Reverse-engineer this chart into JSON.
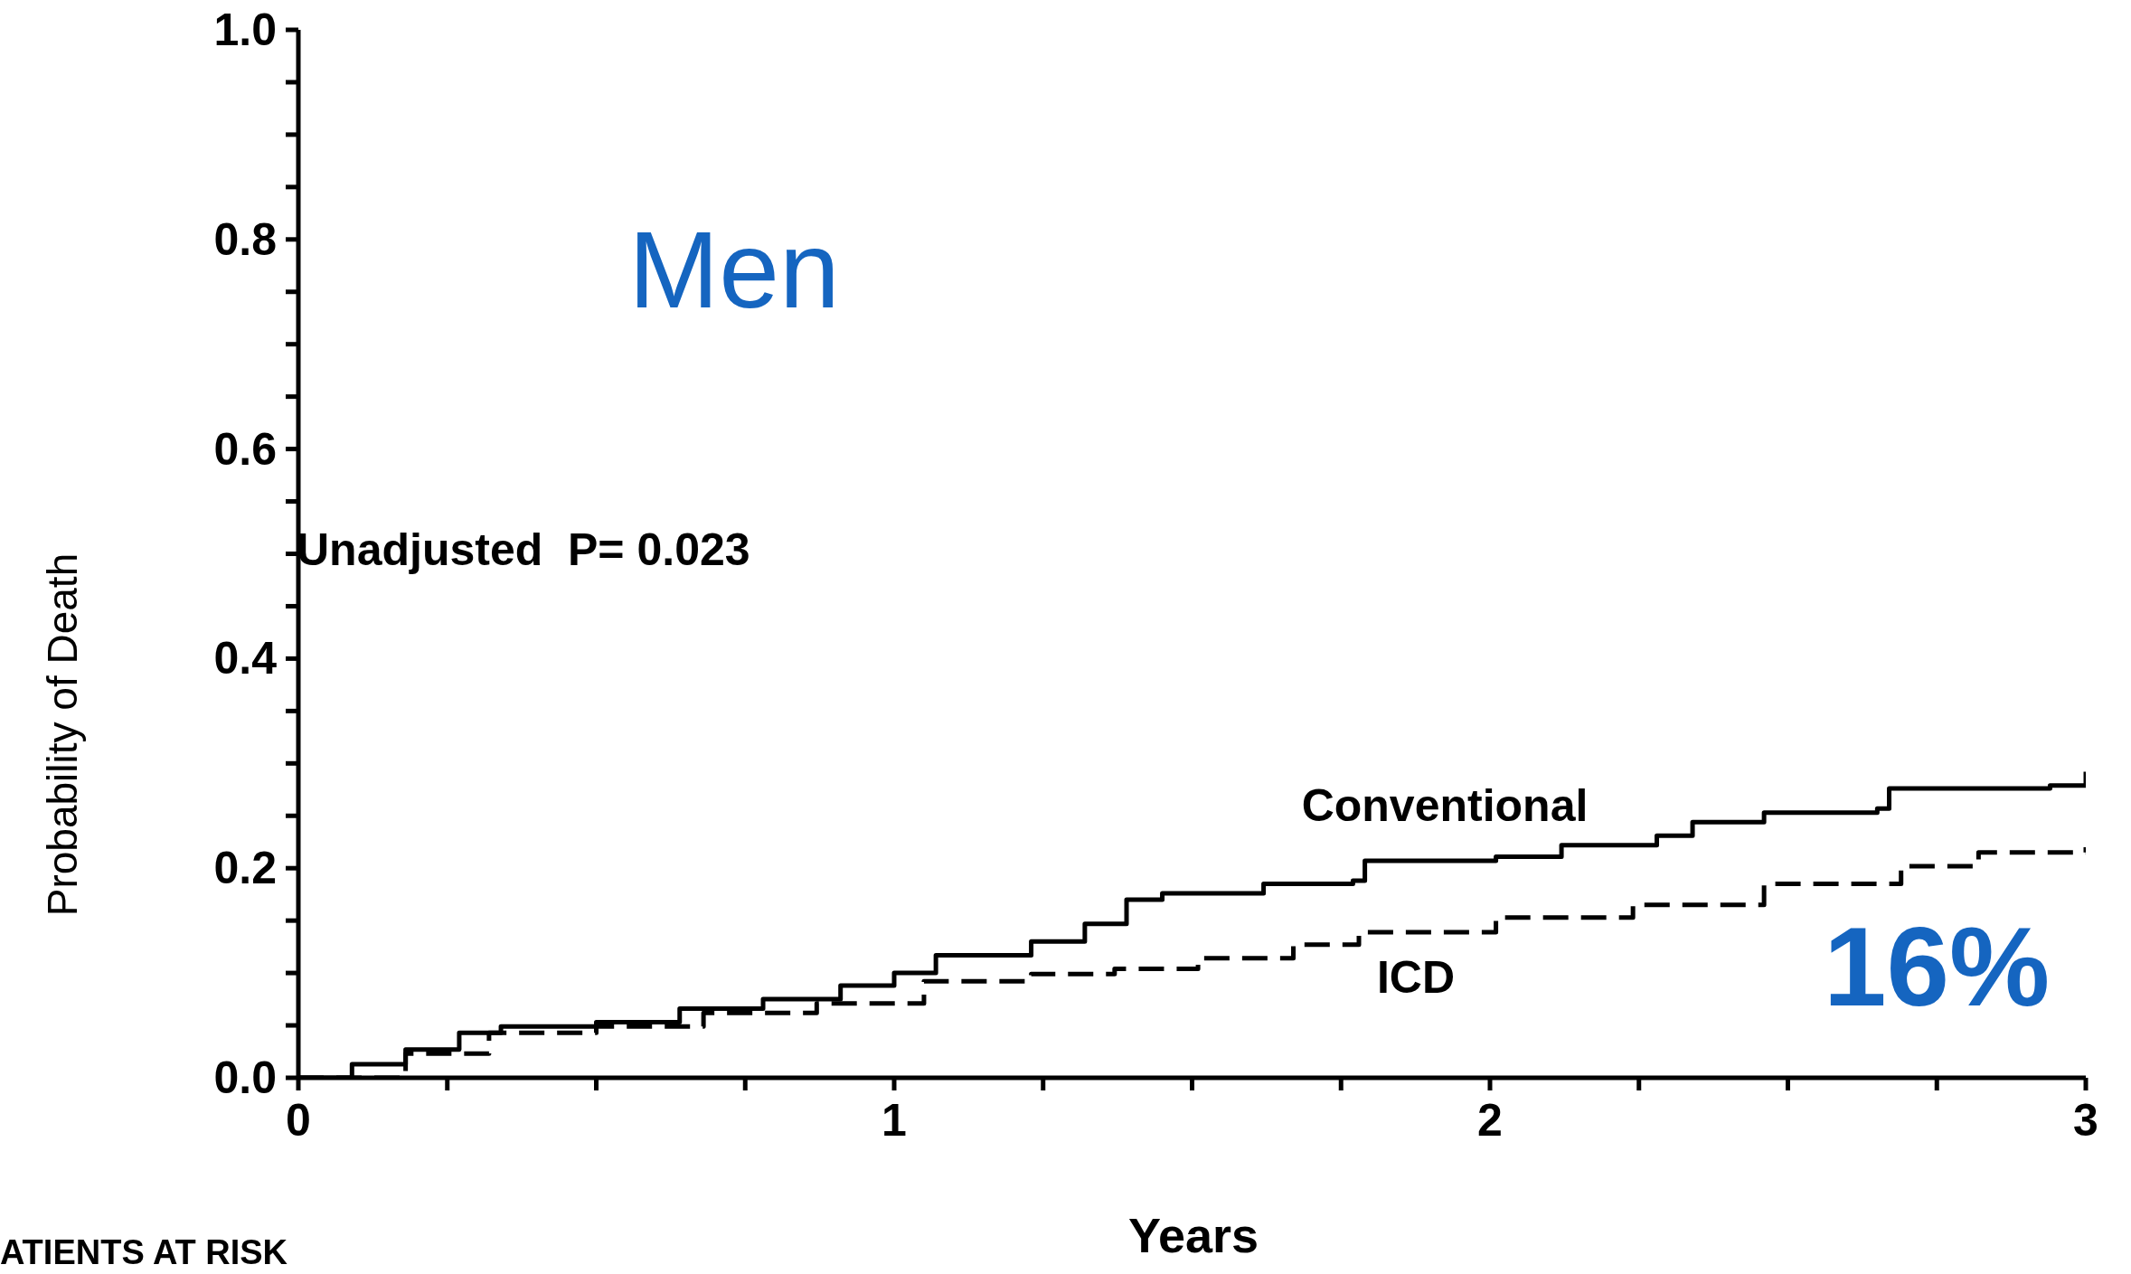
{
  "chart_data": {
    "type": "step",
    "title": "Men",
    "xlabel": "Years",
    "ylabel": "Probability of Death",
    "annotations": [
      "Unadjusted  P= 0.023",
      "16%",
      "ATIENTS AT RISK"
    ],
    "xlim": [
      0,
      3
    ],
    "ylim": [
      0,
      1
    ],
    "xticks": [
      0,
      {
        "value": 0.25,
        "label": null
      },
      {
        "value": 0.5,
        "label": null
      },
      {
        "value": 0.75,
        "label": null
      },
      1,
      {
        "value": 1.25,
        "label": null
      },
      {
        "value": 1.5,
        "label": null
      },
      {
        "value": 1.75,
        "label": null
      },
      2,
      {
        "value": 2.25,
        "label": null
      },
      {
        "value": 2.5,
        "label": null
      },
      {
        "value": 2.75,
        "label": null
      },
      3
    ],
    "yticks": [
      {
        "value": 0,
        "label": "0.0"
      },
      {
        "value": 0.05,
        "label": null
      },
      {
        "value": 0.1,
        "label": null
      },
      {
        "value": 0.15,
        "label": null
      },
      {
        "value": 0.2,
        "label": "0.2"
      },
      {
        "value": 0.25,
        "label": null
      },
      {
        "value": 0.3,
        "label": null
      },
      {
        "value": 0.35,
        "label": null
      },
      {
        "value": 0.4,
        "label": "0.4"
      },
      {
        "value": 0.45,
        "label": null
      },
      {
        "value": 0.5,
        "label": null
      },
      {
        "value": 0.55,
        "label": null
      },
      {
        "value": 0.6,
        "label": "0.6"
      },
      {
        "value": 0.65,
        "label": null
      },
      {
        "value": 0.7,
        "label": null
      },
      {
        "value": 0.75,
        "label": null
      },
      {
        "value": 0.8,
        "label": "0.8"
      },
      {
        "value": 0.85,
        "label": null
      },
      {
        "value": 0.9,
        "label": null
      },
      {
        "value": 0.95,
        "label": null
      },
      {
        "value": 1,
        "label": "1.0"
      }
    ],
    "grid": false,
    "legend": false,
    "series": [
      {
        "name": "Conventional",
        "color": "#000000",
        "line_style": "solid",
        "x": [
          0,
          0.09,
          0.18,
          0.27,
          0.34,
          0.5,
          0.64,
          0.78,
          0.91,
          1.0,
          1.07,
          1.23,
          1.32,
          1.39,
          1.45,
          1.62,
          1.77,
          1.79,
          2.01,
          2.12,
          2.28,
          2.34,
          2.46,
          2.65,
          2.67,
          2.94,
          3.0
        ],
        "values": [
          0,
          0.013,
          0.027,
          0.043,
          0.049,
          0.053,
          0.066,
          0.075,
          0.088,
          0.1,
          0.117,
          0.13,
          0.147,
          0.17,
          0.176,
          0.185,
          0.188,
          0.207,
          0.211,
          0.222,
          0.231,
          0.244,
          0.253,
          0.257,
          0.276,
          0.279,
          0.292
        ]
      },
      {
        "name": "ICD",
        "color": "#000000",
        "line_style": "dashed",
        "x": [
          0,
          0.18,
          0.32,
          0.5,
          0.68,
          0.87,
          1.05,
          1.23,
          1.37,
          1.51,
          1.67,
          1.78,
          2.01,
          2.24,
          2.46,
          2.69,
          2.82,
          3.0
        ],
        "values": [
          0,
          0.023,
          0.043,
          0.049,
          0.062,
          0.071,
          0.092,
          0.099,
          0.104,
          0.114,
          0.127,
          0.139,
          0.153,
          0.165,
          0.185,
          0.202,
          0.215,
          0.22
        ]
      }
    ]
  }
}
